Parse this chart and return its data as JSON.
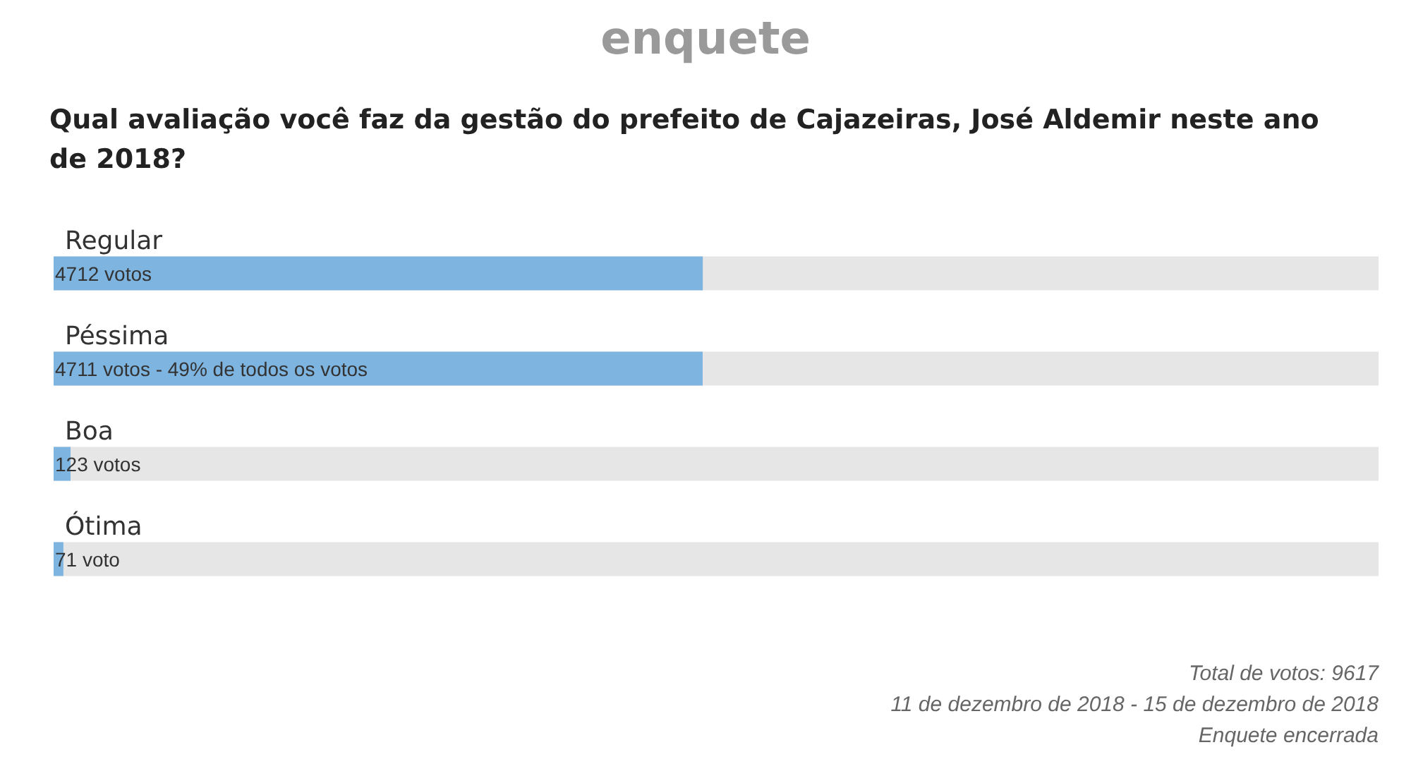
{
  "chart_data": {
    "type": "bar",
    "orientation": "horizontal",
    "title": "enquete",
    "subtitle": "Qual avaliação você faz da gestão do prefeito de Cajazeiras, José Aldemir neste ano de 2018?",
    "categories": [
      "Regular",
      "Péssima",
      "Boa",
      "Ótima"
    ],
    "values": [
      4712,
      4711,
      123,
      71
    ],
    "value_labels": [
      "4712 votos",
      "4711 votos - 49% de todos os votos",
      "123 votos",
      "71 voto"
    ],
    "color": "#7eb4e0",
    "xlim": [
      0,
      9617
    ],
    "annotations": [
      "Total de votos: 9617",
      "11 de dezembro de 2018 - 15 de dezembro de 2018",
      "Enquete encerrada"
    ]
  }
}
